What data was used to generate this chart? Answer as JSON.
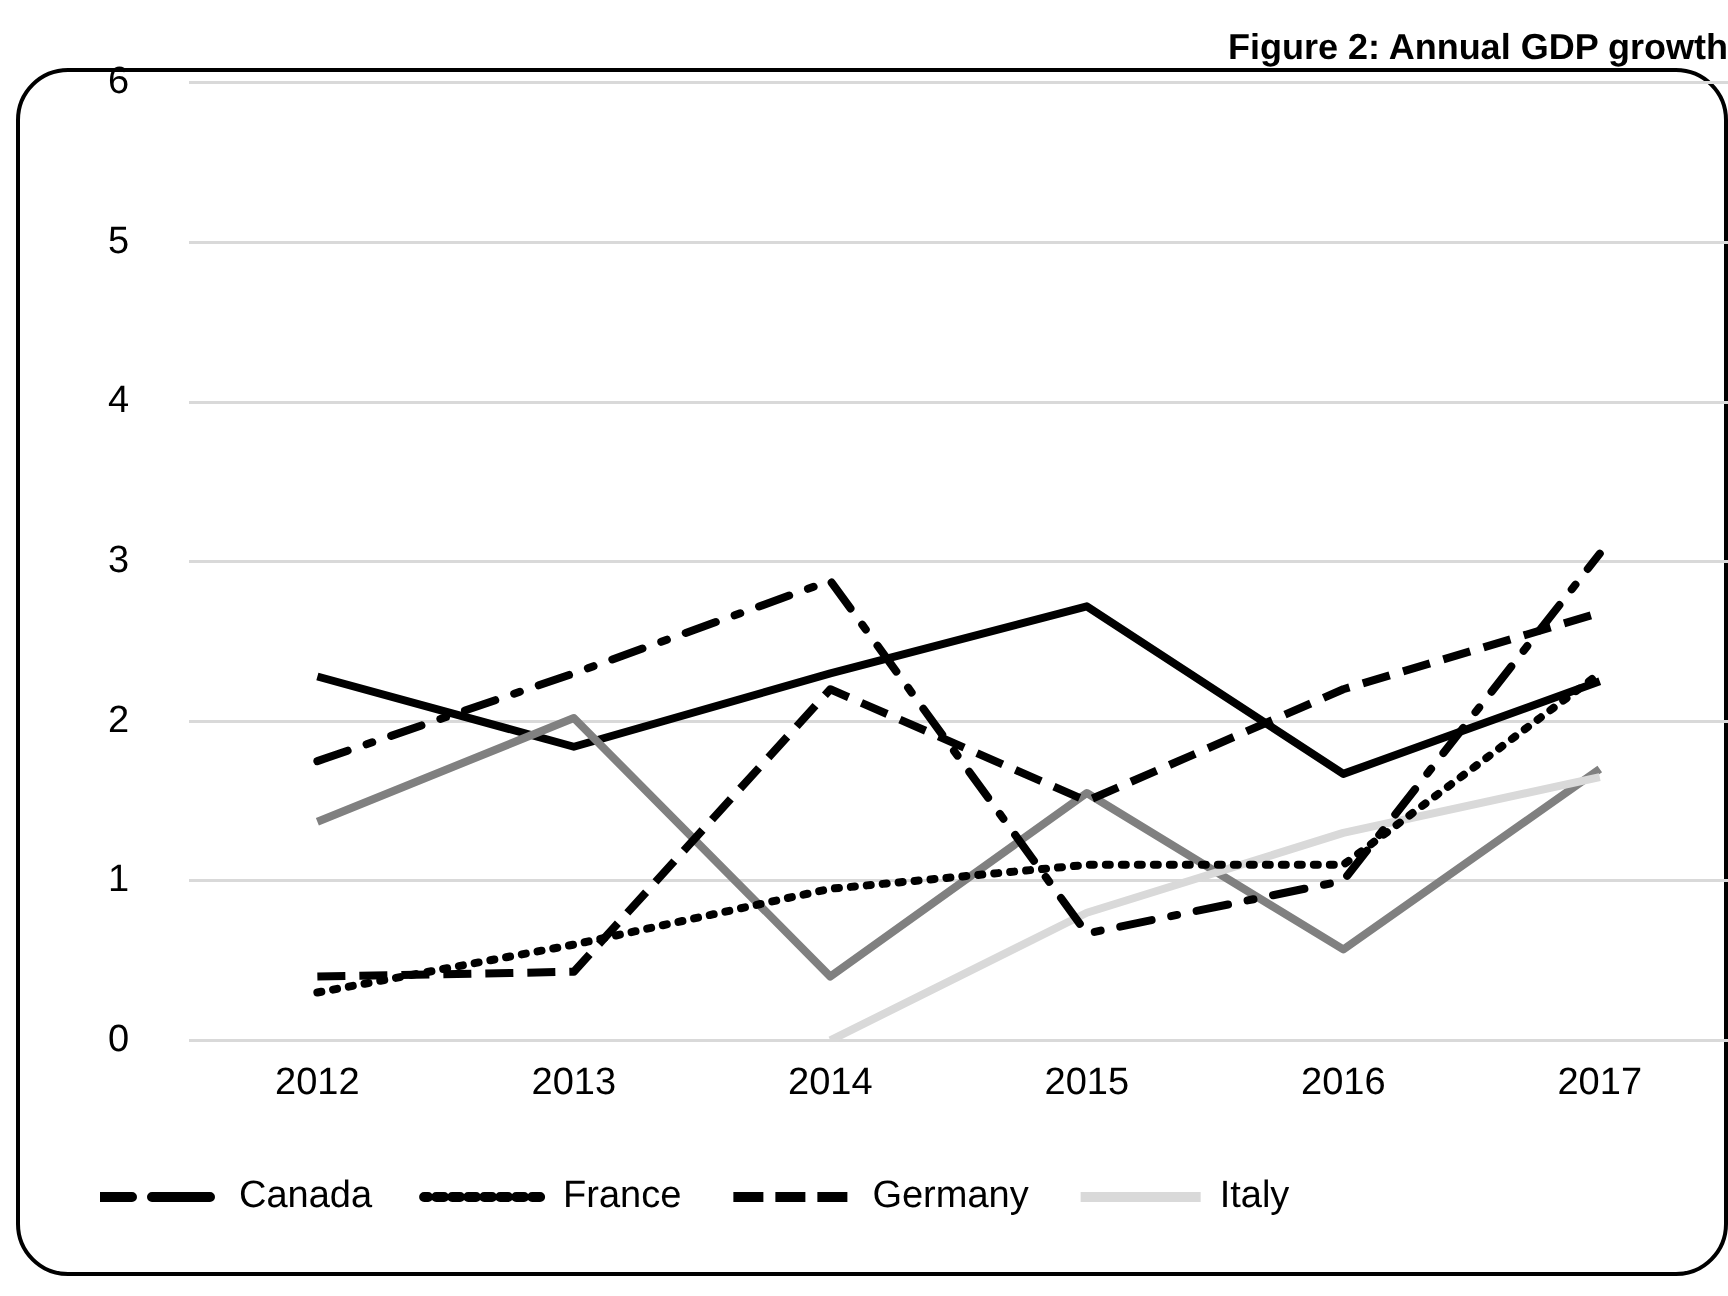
{
  "chart_data": {
    "type": "line",
    "title": "Figure 2: Annual GDP growth",
    "categories": [
      "2012",
      "2013",
      "2014",
      "2015",
      "2016",
      "2017"
    ],
    "ylim": [
      0,
      6
    ],
    "yticks": [
      0,
      1,
      2,
      3,
      4,
      5,
      6
    ],
    "grid": "y",
    "legend": "bottom",
    "marker": "none",
    "series": [
      {
        "name": "Canada",
        "color": "#000000",
        "line_style": "dashdot",
        "values": [
          1.75,
          2.3,
          2.88,
          0.67,
          1.0,
          3.05
        ]
      },
      {
        "name": "France",
        "color": "#000000",
        "line_style": "dotted",
        "values": [
          0.3,
          0.6,
          0.95,
          1.1,
          1.1,
          2.3
        ]
      },
      {
        "name": "Germany",
        "color": "#000000",
        "line_style": "dashed",
        "values": [
          0.4,
          0.43,
          2.2,
          1.5,
          2.2,
          2.68
        ]
      },
      {
        "name": "Italy",
        "color": "#d9d9d9",
        "line_style": "solid",
        "values": [
          null,
          null,
          0.0,
          0.8,
          1.3,
          1.65
        ]
      },
      {
        "color": "#808080",
        "line_style": "solid",
        "values": [
          1.37,
          2.02,
          0.4,
          1.55,
          0.57,
          1.7
        ]
      },
      {
        "color": "#000000",
        "line_style": "solid",
        "values": [
          2.28,
          1.84,
          2.3,
          2.72,
          1.67,
          2.25
        ]
      }
    ]
  }
}
